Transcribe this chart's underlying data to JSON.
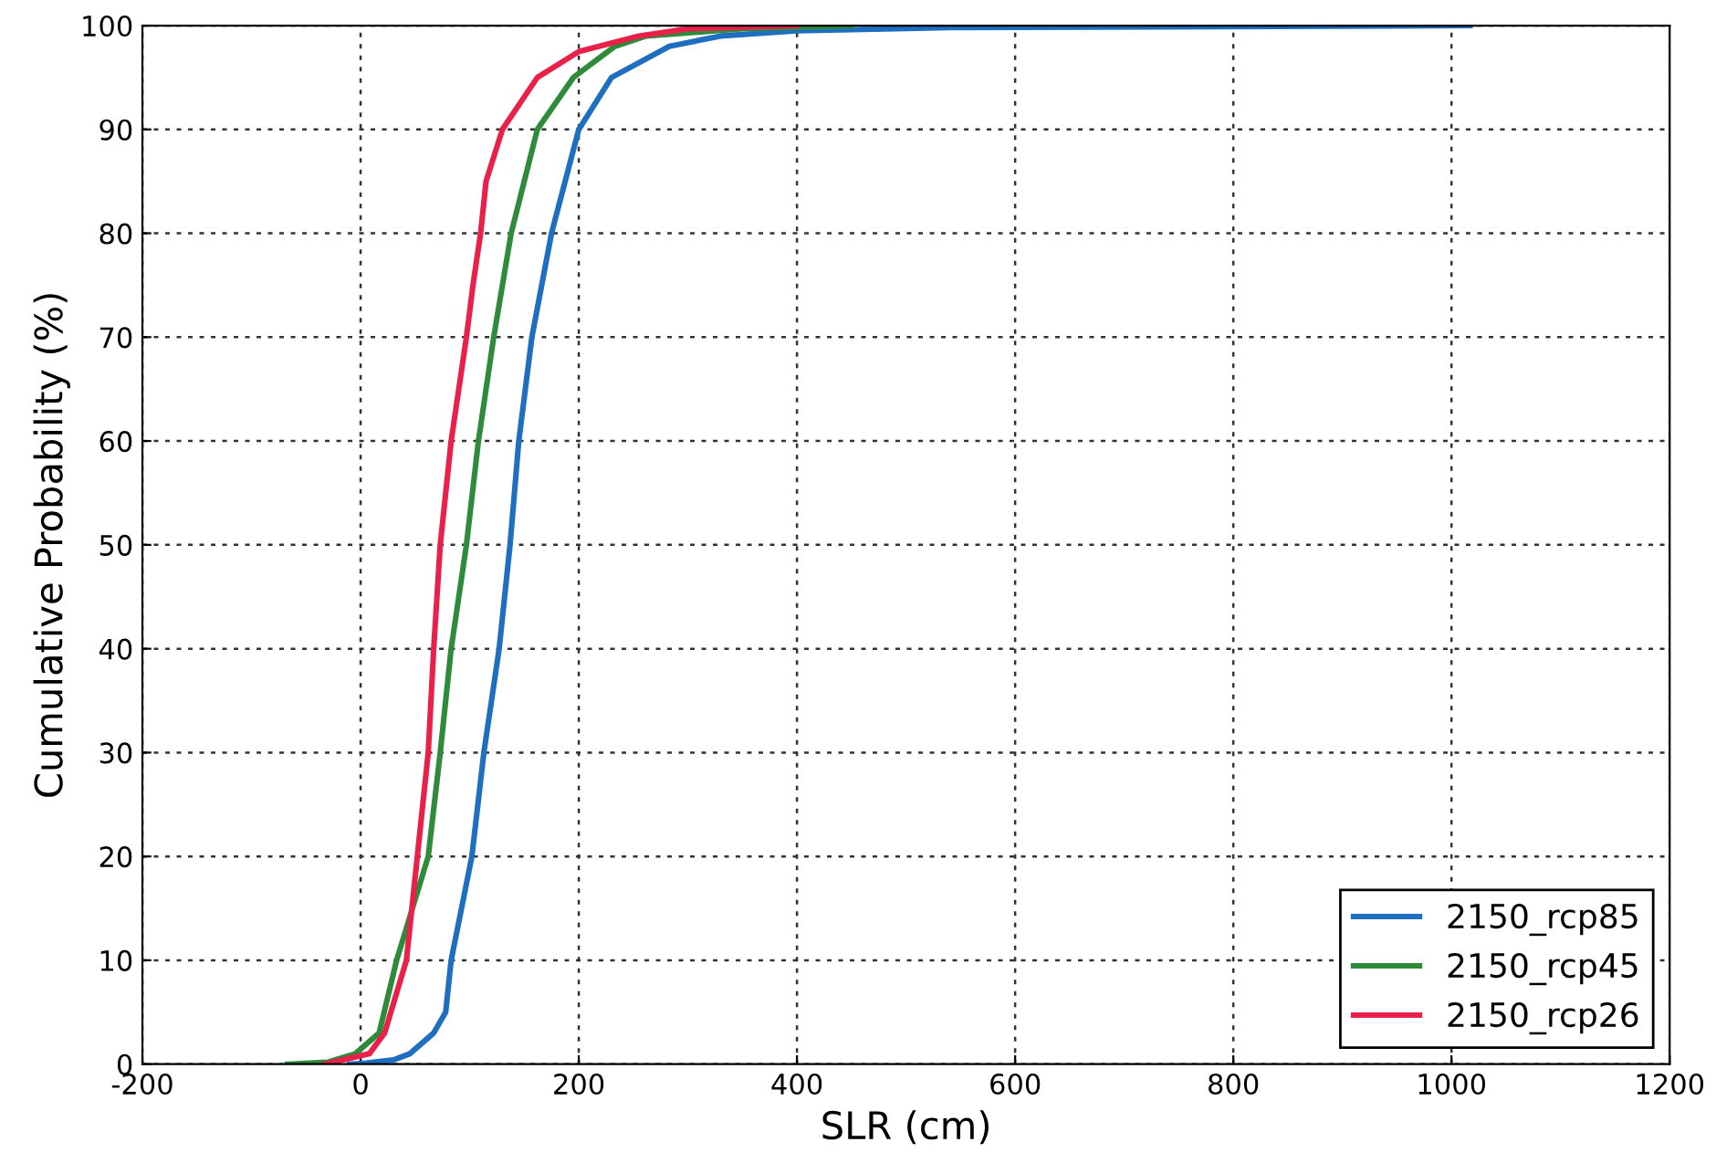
{
  "chart_data": {
    "type": "line",
    "xlabel": "SLR (cm)",
    "ylabel": "Cumulative Probability (%)",
    "xlim": [
      -200,
      1200
    ],
    "xticks": [
      -200,
      0,
      200,
      400,
      600,
      800,
      1000,
      1200
    ],
    "ylim": [
      0,
      100
    ],
    "yticks": [
      0,
      10,
      20,
      30,
      40,
      50,
      60,
      70,
      80,
      90,
      100
    ],
    "grid": true,
    "legend": "bottom right",
    "line_style": "solid",
    "series": [
      {
        "name": "2150_rcp85",
        "color": "#1f6fc0",
        "x": [
          -10,
          5,
          30,
          45,
          67,
          78,
          83,
          102,
          113,
          127,
          137,
          145,
          157,
          175,
          200,
          230,
          283,
          330,
          400,
          540,
          1017
        ],
        "values": [
          0,
          0.1,
          0.4,
          1,
          3,
          5,
          10,
          20,
          30,
          40,
          50,
          60,
          70,
          80,
          90,
          95,
          98,
          99,
          99.5,
          99.8,
          100
        ]
      },
      {
        "name": "2150_rcp45",
        "color": "#2e8b3a",
        "x": [
          -67,
          -30,
          -5,
          17,
          33,
          62,
          73,
          83,
          97,
          108,
          122,
          138,
          162,
          195,
          233,
          262,
          350,
          450
        ],
        "values": [
          0,
          0.2,
          1,
          3,
          10,
          20,
          30,
          40,
          50,
          60,
          70,
          80,
          90,
          95,
          98,
          99,
          99.7,
          100
        ]
      },
      {
        "name": "2150_rcp26",
        "color": "#e8204a",
        "x": [
          -33,
          8,
          22,
          42,
          52,
          62,
          67,
          73,
          83,
          97,
          103,
          110,
          115,
          130,
          162,
          200,
          255,
          300,
          400
        ],
        "values": [
          0,
          1,
          3,
          10,
          20,
          30,
          40,
          50,
          60,
          70,
          75,
          80,
          85,
          90,
          95,
          97.5,
          99,
          99.7,
          100
        ]
      }
    ]
  }
}
